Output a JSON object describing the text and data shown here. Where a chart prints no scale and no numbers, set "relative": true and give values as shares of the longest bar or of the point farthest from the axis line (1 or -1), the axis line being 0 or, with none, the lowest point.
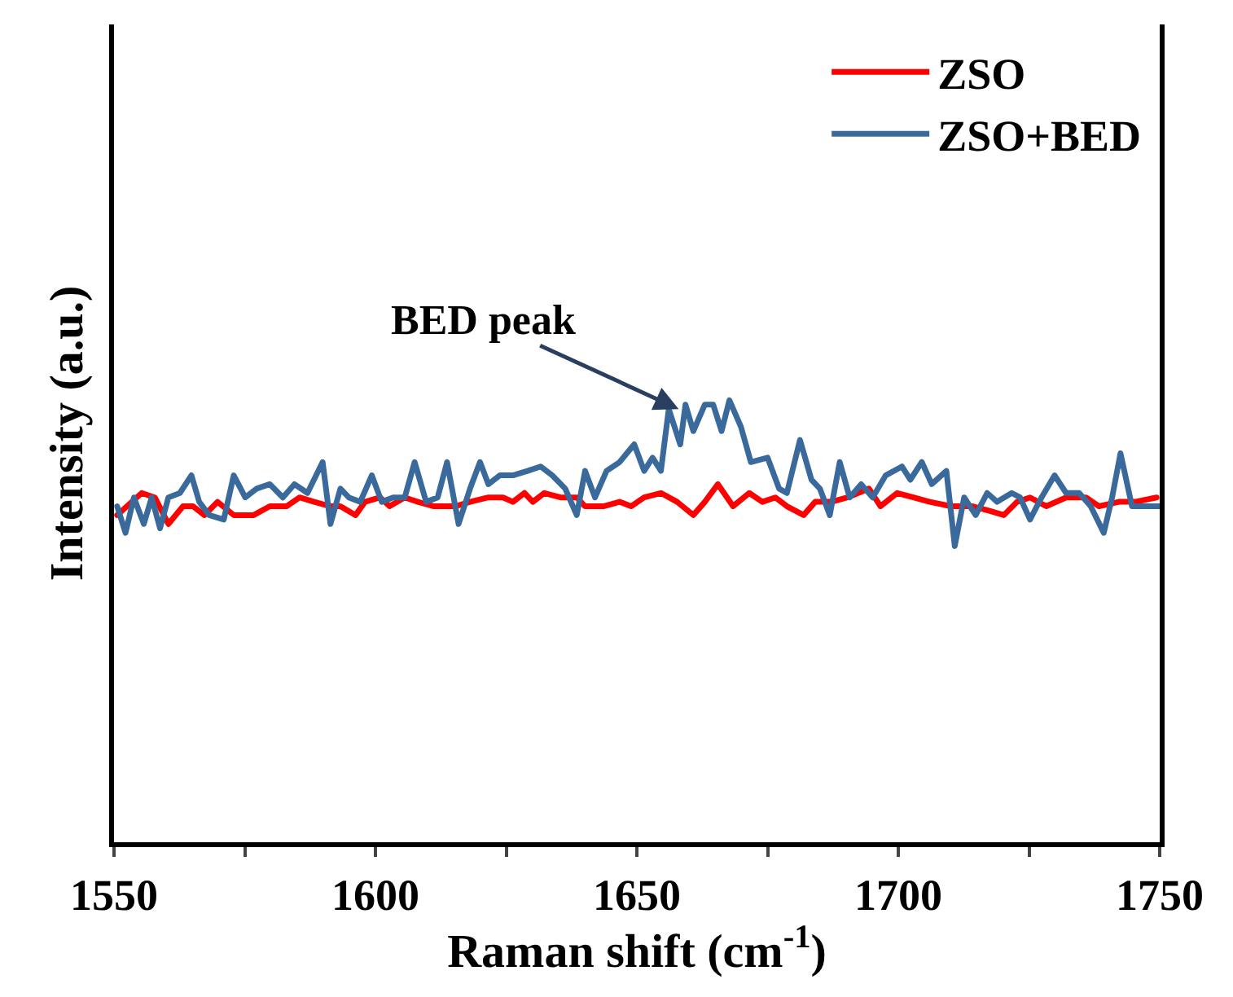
{
  "chart_data": {
    "type": "line",
    "relative": true,
    "xlabel": "Raman shift (cm$^{-1}$)",
    "ylabel": "Intensity (a.u.)",
    "xlim": [
      1550,
      1750
    ],
    "xticks": [
      1550,
      {
        "value": 1575,
        "label": null
      },
      1600,
      {
        "value": 1625,
        "label": null
      },
      1650,
      {
        "value": 1675,
        "label": null
      },
      1700,
      {
        "value": 1725,
        "label": null
      },
      1750
    ],
    "tick_labels": "x",
    "legend": "top right",
    "marker": "none",
    "line_style": "solid",
    "annotations": [
      {
        "text": "BED peak",
        "x": 1658,
        "y": 0.98
      }
    ],
    "series": [
      {
        "name": "ZSO",
        "color": "#ff0000",
        "x": [
          1550.6,
          1555.3,
          1557.8,
          1560.4,
          1563.2,
          1565.1,
          1567.3,
          1569.8,
          1572.9,
          1576.7,
          1579.8,
          1583.0,
          1585.5,
          1588.3,
          1591.4,
          1593.3,
          1596.2,
          1598.0,
          1600.9,
          1602.7,
          1605.6,
          1608.1,
          1611.2,
          1615.3,
          1618.1,
          1621.6,
          1624.4,
          1626.3,
          1628.5,
          1630.1,
          1632.3,
          1635.4,
          1638.5,
          1640.1,
          1643.6,
          1646.7,
          1648.9,
          1651.4,
          1654.6,
          1657.7,
          1660.8,
          1663.0,
          1665.5,
          1668.4,
          1671.5,
          1674.0,
          1676.5,
          1678.7,
          1681.9,
          1684.1,
          1687.2,
          1690.3,
          1694.4,
          1696.6,
          1699.8,
          1702.9,
          1706.0,
          1710.1,
          1714.2,
          1717.3,
          1720.2,
          1722.7,
          1725.2,
          1728.3,
          1732.1,
          1735.9,
          1738.4,
          1742.2,
          1745.3,
          1749.4
        ],
        "values": [
          0.74,
          0.79,
          0.78,
          0.72,
          0.76,
          0.76,
          0.74,
          0.77,
          0.74,
          0.74,
          0.76,
          0.76,
          0.78,
          0.77,
          0.76,
          0.76,
          0.74,
          0.77,
          0.78,
          0.76,
          0.78,
          0.77,
          0.76,
          0.76,
          0.77,
          0.78,
          0.78,
          0.77,
          0.79,
          0.77,
          0.79,
          0.78,
          0.78,
          0.76,
          0.76,
          0.77,
          0.76,
          0.78,
          0.79,
          0.77,
          0.74,
          0.77,
          0.81,
          0.76,
          0.79,
          0.77,
          0.78,
          0.76,
          0.74,
          0.77,
          0.77,
          0.78,
          0.8,
          0.76,
          0.79,
          0.78,
          0.77,
          0.76,
          0.76,
          0.75,
          0.74,
          0.77,
          0.78,
          0.76,
          0.78,
          0.78,
          0.76,
          0.77,
          0.77,
          0.78
        ]
      },
      {
        "name": "ZSO+BED",
        "color": "#3a6a9c",
        "x": [
          1550.6,
          1552.2,
          1553.8,
          1555.7,
          1557.2,
          1558.8,
          1560.4,
          1562.6,
          1564.8,
          1566.3,
          1568.2,
          1571.0,
          1572.9,
          1575.1,
          1577.3,
          1579.8,
          1582.3,
          1584.5,
          1587.0,
          1589.9,
          1591.4,
          1593.3,
          1594.9,
          1597.1,
          1599.3,
          1601.2,
          1603.4,
          1605.6,
          1607.5,
          1609.7,
          1611.9,
          1613.7,
          1615.9,
          1618.1,
          1620.0,
          1621.6,
          1623.8,
          1626.3,
          1629.1,
          1631.6,
          1633.8,
          1636.3,
          1638.5,
          1640.1,
          1642.0,
          1644.2,
          1646.7,
          1649.5,
          1651.4,
          1653.0,
          1654.6,
          1656.1,
          1658.3,
          1659.3,
          1660.8,
          1663.0,
          1664.6,
          1666.2,
          1667.7,
          1669.9,
          1671.8,
          1675.0,
          1677.2,
          1678.7,
          1681.2,
          1683.4,
          1685.0,
          1686.9,
          1688.8,
          1690.7,
          1692.9,
          1695.1,
          1697.6,
          1700.7,
          1702.3,
          1704.5,
          1706.4,
          1709.2,
          1710.8,
          1712.6,
          1714.8,
          1717.0,
          1718.9,
          1721.7,
          1723.3,
          1725.2,
          1727.4,
          1729.9,
          1732.1,
          1734.6,
          1736.8,
          1739.3,
          1740.9,
          1742.5,
          1744.7,
          1747.2,
          1750.0
        ],
        "values": [
          0.76,
          0.7,
          0.78,
          0.72,
          0.78,
          0.71,
          0.78,
          0.79,
          0.83,
          0.77,
          0.74,
          0.73,
          0.83,
          0.78,
          0.8,
          0.81,
          0.78,
          0.81,
          0.79,
          0.86,
          0.72,
          0.8,
          0.78,
          0.77,
          0.83,
          0.77,
          0.78,
          0.78,
          0.86,
          0.77,
          0.78,
          0.86,
          0.72,
          0.8,
          0.86,
          0.81,
          0.83,
          0.83,
          0.84,
          0.85,
          0.83,
          0.8,
          0.74,
          0.84,
          0.78,
          0.84,
          0.86,
          0.9,
          0.84,
          0.87,
          0.84,
          0.98,
          0.9,
          0.99,
          0.93,
          0.99,
          0.99,
          0.93,
          1.0,
          0.94,
          0.86,
          0.87,
          0.8,
          0.79,
          0.91,
          0.82,
          0.8,
          0.74,
          0.86,
          0.78,
          0.81,
          0.78,
          0.83,
          0.85,
          0.82,
          0.86,
          0.81,
          0.84,
          0.67,
          0.78,
          0.74,
          0.79,
          0.77,
          0.79,
          0.78,
          0.73,
          0.78,
          0.83,
          0.79,
          0.79,
          0.76,
          0.7,
          0.78,
          0.88,
          0.76,
          0.76,
          0.76
        ]
      }
    ]
  }
}
